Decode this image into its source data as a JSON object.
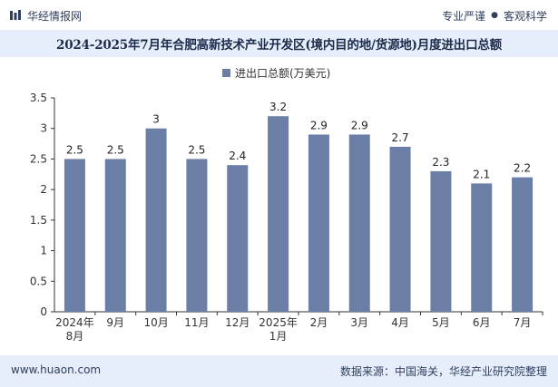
{
  "header": {
    "brand": "华经情报网",
    "tag1": "专业严谨",
    "tag_sep": "●",
    "tag2": "客观科学"
  },
  "title": "2024-2025年7月年合肥高新技术产业开发区(境内目的地/货源地)月度进出口总额",
  "footer": {
    "website": "www.huaon.com",
    "source": "数据来源：中国海关，华经产业研究院整理"
  },
  "colors": {
    "bar": "#6a7ea6",
    "title_bg": "#e6eefb",
    "axis": "#333333",
    "grid": "#e5e5e5"
  },
  "chart_data": {
    "type": "bar",
    "title": "2024-2025年7月年合肥高新技术产业开发区(境内目的地/货源地)月度进出口总额",
    "legend": "进出口总额(万美元)",
    "legend_position": "top-center",
    "categories": [
      [
        "2024年",
        "8月"
      ],
      [
        "9月"
      ],
      [
        "10月"
      ],
      [
        "11月"
      ],
      [
        "12月"
      ],
      [
        "2025年",
        "1月"
      ],
      [
        "2月"
      ],
      [
        "3月"
      ],
      [
        "4月"
      ],
      [
        "5月"
      ],
      [
        "6月"
      ],
      [
        "7月"
      ]
    ],
    "values": [
      2.5,
      2.5,
      3,
      2.5,
      2.4,
      3.2,
      2.9,
      2.9,
      2.7,
      2.3,
      2.1,
      2.2
    ],
    "value_labels": [
      "2.5",
      "2.5",
      "3",
      "2.5",
      "2.4",
      "3.2",
      "2.9",
      "2.9",
      "2.7",
      "2.3",
      "2.1",
      "2.2"
    ],
    "y_ticks": [
      "0",
      "0.5",
      "1",
      "1.5",
      "2",
      "2.5",
      "3",
      "3.5"
    ],
    "ylim": [
      0,
      3.5
    ],
    "xlabel": "",
    "ylabel": "",
    "grid": false
  }
}
